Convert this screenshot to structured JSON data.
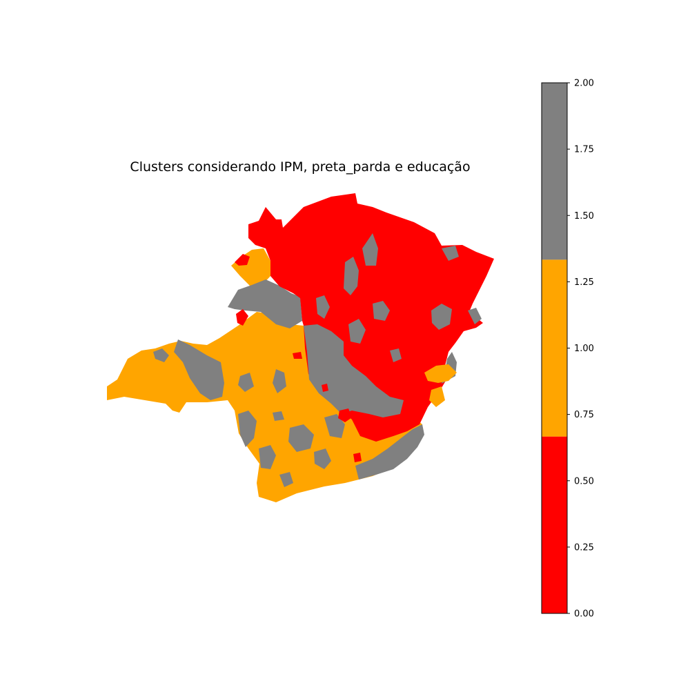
{
  "figure": {
    "title": "Clusters considerando IPM, preta_parda e educação"
  },
  "legend": {
    "type": "colorbar",
    "placement": "right",
    "range": [
      0.0,
      2.0
    ],
    "tick_labels": [
      "0.00",
      "0.25",
      "0.50",
      "0.75",
      "1.00",
      "1.25",
      "1.50",
      "1.75",
      "2.00"
    ],
    "bands": [
      {
        "from": 0.0,
        "to": 0.6667,
        "color": "#ff0000"
      },
      {
        "from": 0.6667,
        "to": 1.3333,
        "color": "#ffa500"
      },
      {
        "from": 1.3333,
        "to": 2.0,
        "color": "#808080"
      }
    ]
  },
  "map": {
    "cluster_colors": {
      "cluster_0": "#ff0000",
      "cluster_1": "#ffa500",
      "cluster_2": "#808080"
    },
    "axes_visible": false
  }
}
